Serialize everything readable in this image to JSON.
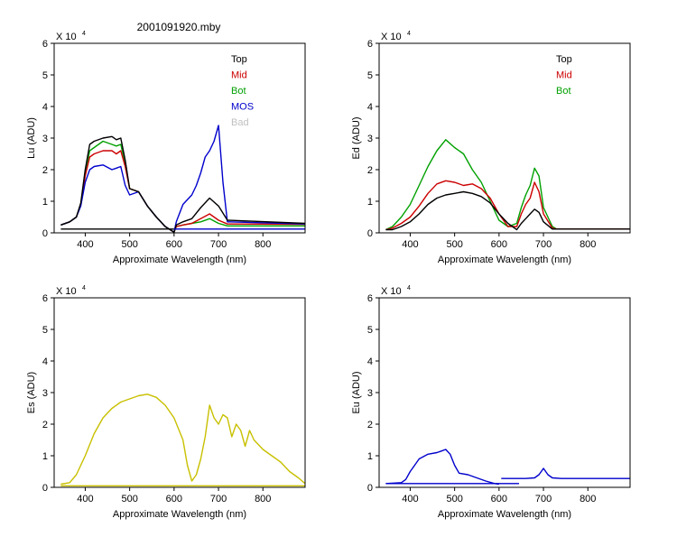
{
  "figure_title": "2001091920.mby",
  "chart_data": [
    {
      "id": "lu",
      "type": "line",
      "title": "2001091920.mby",
      "ylabel": "Lu (ADU)",
      "xlabel": "Approximate Wavelength (nm)",
      "multiplier": "X 10",
      "multiplier_exp": "4",
      "xlim": [
        330,
        895
      ],
      "ylim": [
        0,
        6
      ],
      "xticks": [
        400,
        500,
        600,
        700,
        800
      ],
      "yticks": [
        0,
        1,
        2,
        3,
        4,
        5,
        6
      ],
      "legend": [
        {
          "label": "Top",
          "color": "#000000"
        },
        {
          "label": "Mid",
          "color": "#cc0000"
        },
        {
          "label": "Bot",
          "color": "#00a000"
        },
        {
          "label": "MOS",
          "color": "#0000cc"
        },
        {
          "label": "Bad",
          "color": "#c0c0c0"
        }
      ],
      "series": [
        {
          "name": "Bot",
          "color": "#00a000",
          "x": [
            345,
            365,
            380,
            390,
            400,
            410,
            420,
            440,
            460,
            470,
            480,
            490,
            500,
            520,
            540,
            560,
            580,
            600,
            605,
            620,
            640,
            660,
            680,
            700,
            720,
            895
          ],
          "y": [
            0.25,
            0.35,
            0.5,
            0.9,
            1.9,
            2.6,
            2.7,
            2.9,
            2.8,
            2.75,
            2.8,
            2.2,
            1.4,
            1.3,
            0.85,
            0.5,
            0.2,
            0.02,
            0.2,
            0.25,
            0.3,
            0.35,
            0.45,
            0.3,
            0.22,
            0.22
          ]
        },
        {
          "name": "Mid",
          "color": "#cc0000",
          "x": [
            345,
            365,
            380,
            390,
            400,
            410,
            420,
            440,
            460,
            470,
            480,
            490,
            500,
            520,
            540,
            560,
            580,
            600,
            605,
            620,
            640,
            660,
            680,
            700,
            720,
            895
          ],
          "y": [
            0.25,
            0.35,
            0.5,
            0.9,
            1.8,
            2.4,
            2.5,
            2.6,
            2.6,
            2.5,
            2.6,
            2.1,
            1.4,
            1.3,
            0.85,
            0.5,
            0.2,
            0.02,
            0.2,
            0.25,
            0.3,
            0.45,
            0.6,
            0.4,
            0.28,
            0.27
          ]
        },
        {
          "name": "MOS",
          "color": "#0000cc",
          "x": [
            345,
            365,
            380,
            390,
            400,
            410,
            420,
            440,
            460,
            470,
            480,
            490,
            500,
            520,
            540,
            560,
            580,
            600,
            605,
            620,
            640,
            650,
            660,
            670,
            680,
            690,
            700,
            710,
            720,
            895
          ],
          "y": [
            0.25,
            0.35,
            0.5,
            0.85,
            1.6,
            2.0,
            2.1,
            2.15,
            2.0,
            2.05,
            2.1,
            1.5,
            1.2,
            1.3,
            0.85,
            0.5,
            0.2,
            0.02,
            0.35,
            0.9,
            1.2,
            1.5,
            1.9,
            2.4,
            2.6,
            2.9,
            3.4,
            1.6,
            0.35,
            0.28
          ]
        },
        {
          "name": "Top",
          "color": "#000000",
          "x": [
            345,
            365,
            380,
            390,
            400,
            410,
            420,
            440,
            460,
            470,
            480,
            490,
            500,
            520,
            540,
            560,
            580,
            600,
            605,
            620,
            640,
            660,
            680,
            700,
            720,
            895
          ],
          "y": [
            0.25,
            0.35,
            0.5,
            0.95,
            2.0,
            2.8,
            2.9,
            3.0,
            3.05,
            2.95,
            3.0,
            2.3,
            1.4,
            1.3,
            0.85,
            0.5,
            0.2,
            0.02,
            0.25,
            0.35,
            0.45,
            0.8,
            1.1,
            0.85,
            0.4,
            0.3
          ]
        },
        {
          "name": "",
          "color": "#000000",
          "x": [
            345,
            600
          ],
          "y": [
            0.12,
            0.12
          ]
        },
        {
          "name": "",
          "color": "#0000cc",
          "x": [
            600,
            895
          ],
          "y": [
            0.12,
            0.12
          ]
        }
      ]
    },
    {
      "id": "ed",
      "type": "line",
      "ylabel": "Ed (ADU)",
      "xlabel": "Approximate Wavelength (nm)",
      "multiplier": "X 10",
      "multiplier_exp": "4",
      "xlim": [
        330,
        895
      ],
      "ylim": [
        0,
        6
      ],
      "xticks": [
        400,
        500,
        600,
        700,
        800
      ],
      "yticks": [
        0,
        1,
        2,
        3,
        4,
        5,
        6
      ],
      "legend": [
        {
          "label": "Top",
          "color": "#000000"
        },
        {
          "label": "Mid",
          "color": "#cc0000"
        },
        {
          "label": "Bot",
          "color": "#00a000"
        }
      ],
      "series": [
        {
          "name": "Bot",
          "color": "#00a000",
          "x": [
            345,
            360,
            380,
            400,
            420,
            440,
            460,
            480,
            500,
            520,
            540,
            560,
            580,
            600,
            620,
            640,
            650,
            660,
            670,
            680,
            690,
            700,
            720,
            730,
            895
          ],
          "y": [
            0.1,
            0.2,
            0.5,
            0.9,
            1.5,
            2.1,
            2.6,
            2.95,
            2.7,
            2.5,
            2.0,
            1.6,
            1.0,
            0.4,
            0.2,
            0.3,
            0.8,
            1.2,
            1.5,
            2.05,
            1.8,
            0.8,
            0.2,
            0.12,
            0.12
          ]
        },
        {
          "name": "Mid",
          "color": "#cc0000",
          "x": [
            345,
            360,
            380,
            400,
            420,
            440,
            460,
            480,
            500,
            520,
            540,
            560,
            580,
            600,
            620,
            640,
            650,
            660,
            670,
            680,
            690,
            700,
            720,
            730,
            895
          ],
          "y": [
            0.1,
            0.15,
            0.3,
            0.5,
            0.85,
            1.25,
            1.55,
            1.65,
            1.6,
            1.5,
            1.55,
            1.4,
            1.1,
            0.6,
            0.2,
            0.2,
            0.6,
            0.9,
            1.1,
            1.6,
            1.3,
            0.6,
            0.15,
            0.12,
            0.12
          ]
        },
        {
          "name": "Top",
          "color": "#000000",
          "x": [
            345,
            360,
            380,
            400,
            420,
            440,
            460,
            480,
            500,
            520,
            540,
            560,
            580,
            600,
            620,
            640,
            650,
            660,
            670,
            680,
            690,
            700,
            720,
            730,
            895
          ],
          "y": [
            0.1,
            0.1,
            0.2,
            0.35,
            0.6,
            0.9,
            1.1,
            1.2,
            1.25,
            1.3,
            1.25,
            1.15,
            0.95,
            0.6,
            0.3,
            0.1,
            0.3,
            0.45,
            0.6,
            0.75,
            0.65,
            0.35,
            0.12,
            0.12,
            0.12
          ]
        }
      ]
    },
    {
      "id": "es",
      "type": "line",
      "ylabel": "Es (ADU)",
      "xlabel": "Approximate Wavelength (nm)",
      "multiplier": "X 10",
      "multiplier_exp": "4",
      "xlim": [
        330,
        895
      ],
      "ylim": [
        0,
        6
      ],
      "xticks": [
        400,
        500,
        600,
        700,
        800
      ],
      "yticks": [
        0,
        1,
        2,
        3,
        4,
        5,
        6
      ],
      "legend": [],
      "series": [
        {
          "name": "",
          "color": "#c8c000",
          "x": [
            345,
            365,
            380,
            400,
            420,
            440,
            460,
            480,
            500,
            520,
            540,
            560,
            580,
            600,
            620,
            630,
            640,
            650,
            660,
            670,
            680,
            690,
            700,
            710,
            720,
            730,
            740,
            750,
            760,
            770,
            780,
            800,
            820,
            840,
            860,
            880,
            895
          ],
          "y": [
            0.1,
            0.15,
            0.4,
            1.0,
            1.7,
            2.2,
            2.5,
            2.7,
            2.8,
            2.9,
            2.95,
            2.85,
            2.6,
            2.2,
            1.5,
            0.7,
            0.2,
            0.4,
            0.9,
            1.6,
            2.6,
            2.2,
            2.0,
            2.3,
            2.2,
            1.6,
            2.0,
            1.8,
            1.3,
            1.8,
            1.5,
            1.2,
            1.0,
            0.8,
            0.5,
            0.3,
            0.12
          ]
        },
        {
          "name": "",
          "color": "#c8c000",
          "x": [
            345,
            895
          ],
          "y": [
            0.05,
            0.05
          ]
        }
      ]
    },
    {
      "id": "eu",
      "type": "line",
      "ylabel": "Eu (ADU)",
      "xlabel": "Approximate Wavelength (nm)",
      "multiplier": "X 10",
      "multiplier_exp": "4",
      "xlim": [
        330,
        895
      ],
      "ylim": [
        0,
        6
      ],
      "xticks": [
        400,
        500,
        600,
        700,
        800
      ],
      "yticks": [
        0,
        1,
        2,
        3,
        4,
        5,
        6
      ],
      "legend": [],
      "series": [
        {
          "name": "",
          "color": "#0000cc",
          "x": [
            345,
            380,
            390,
            400,
            410,
            420,
            440,
            460,
            470,
            480,
            490,
            500,
            510,
            530,
            550,
            570,
            590,
            600
          ],
          "y": [
            0.12,
            0.15,
            0.25,
            0.5,
            0.7,
            0.9,
            1.05,
            1.1,
            1.15,
            1.2,
            1.05,
            0.7,
            0.45,
            0.4,
            0.3,
            0.2,
            0.12,
            0.1
          ]
        },
        {
          "name": "",
          "color": "#0000cc",
          "x": [
            345,
            645
          ],
          "y": [
            0.12,
            0.12
          ]
        },
        {
          "name": "",
          "color": "#0000cc",
          "x": [
            605,
            660,
            680,
            690,
            700,
            710,
            720,
            740,
            895
          ],
          "y": [
            0.28,
            0.28,
            0.3,
            0.4,
            0.6,
            0.4,
            0.3,
            0.28,
            0.28
          ]
        }
      ]
    }
  ]
}
